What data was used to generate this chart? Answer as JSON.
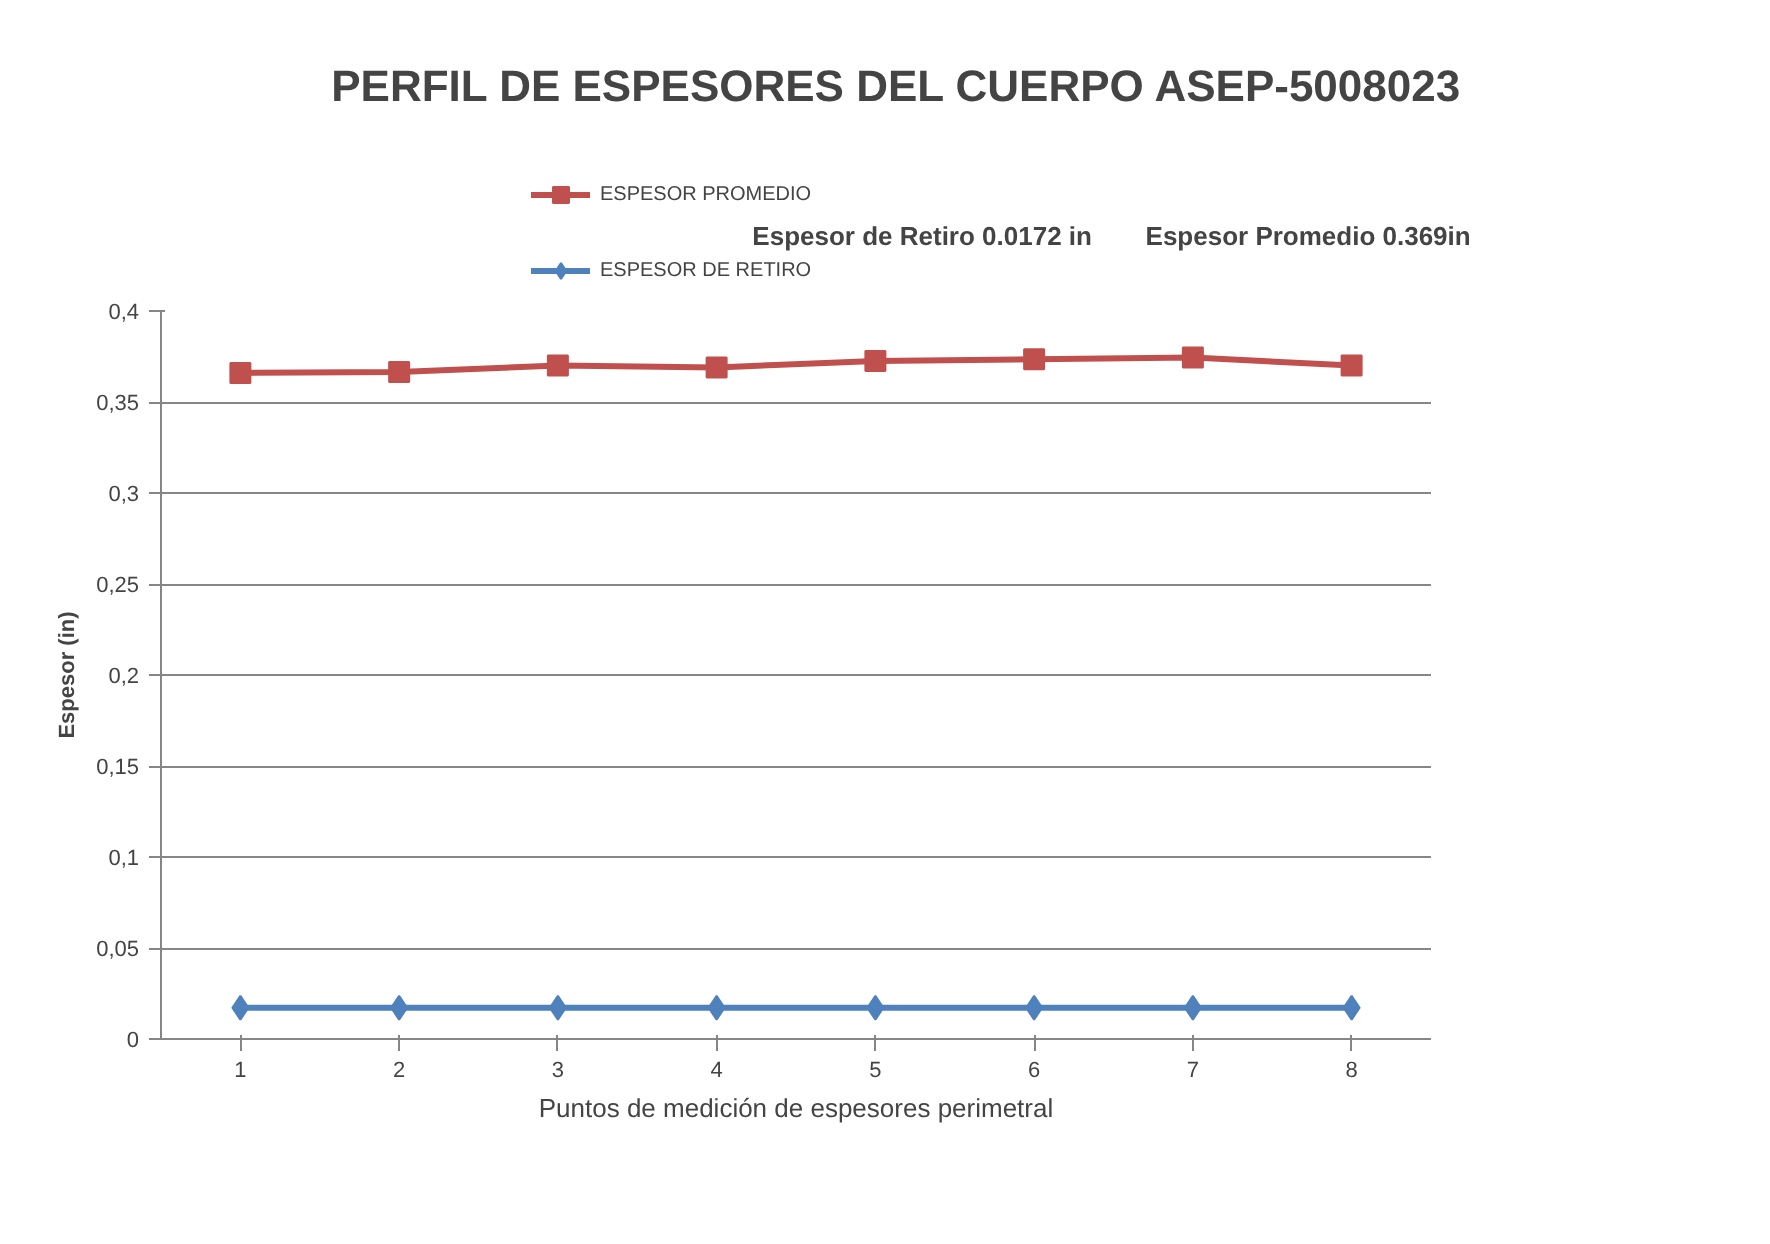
{
  "chart_data": {
    "type": "line",
    "title": "PERFIL DE ESPESORES  DEL CUERPO ASEP-5008023",
    "xlabel": "Puntos de medición de espesores perimetral",
    "ylabel": "Espesor (in)",
    "categories": [
      "1",
      "2",
      "3",
      "4",
      "5",
      "6",
      "7",
      "8"
    ],
    "series": [
      {
        "name": "ESPESOR PROMEDIO",
        "color": "#c0504d",
        "marker": "square",
        "values": [
          0.366,
          0.3665,
          0.37,
          0.369,
          0.3725,
          0.3735,
          0.3745,
          0.37
        ]
      },
      {
        "name": "ESPESOR DE RETIRO",
        "color": "#4f81bd",
        "marker": "diamond",
        "values": [
          0.0172,
          0.0172,
          0.0172,
          0.0172,
          0.0172,
          0.0172,
          0.0172,
          0.0172
        ]
      }
    ],
    "annotations": [
      "Espesor de Retiro 0.0172  in",
      "Espesor Promedio 0.369in"
    ],
    "ylim": [
      0,
      0.4
    ],
    "yticks": [
      {
        "value": 0,
        "label": "0"
      },
      {
        "value": 0.05,
        "label": "0,05"
      },
      {
        "value": 0.1,
        "label": "0,1"
      },
      {
        "value": 0.15,
        "label": "0,15"
      },
      {
        "value": 0.2,
        "label": "0,2"
      },
      {
        "value": 0.25,
        "label": "0,25"
      },
      {
        "value": 0.3,
        "label": "0,3"
      },
      {
        "value": 0.35,
        "label": "0,35"
      },
      {
        "value": 0.4,
        "label": "0,4"
      }
    ],
    "grid": "y",
    "legend": "top left",
    "line_style": "solid"
  }
}
